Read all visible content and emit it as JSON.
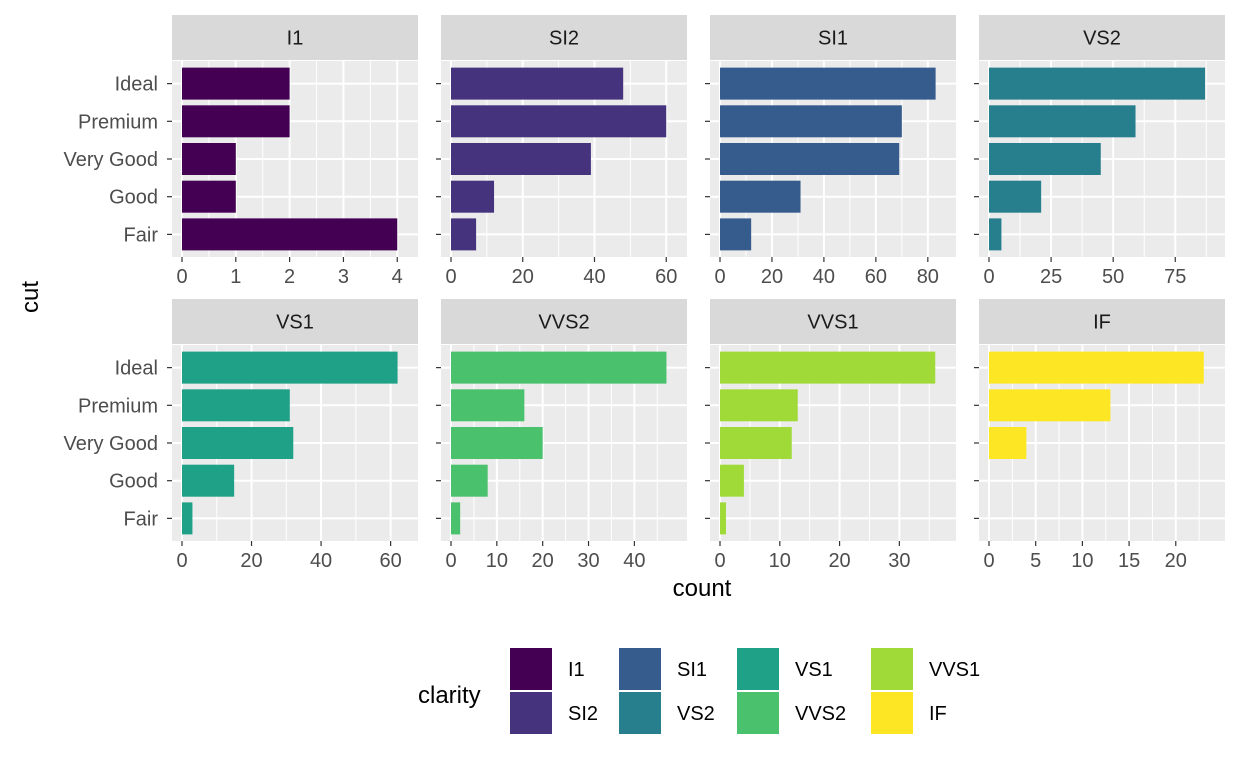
{
  "chart_data": {
    "type": "bar",
    "orientation": "horizontal",
    "faceted_by": "clarity",
    "facet_scales": "free_x",
    "xlabel": "count",
    "ylabel": "cut",
    "categories": [
      "Ideal",
      "Premium",
      "Very Good",
      "Good",
      "Fair"
    ],
    "panels": [
      {
        "name": "I1",
        "color": "#440154",
        "values": [
          2,
          2,
          1,
          1,
          4
        ],
        "xlim": [
          0,
          4.2
        ],
        "ticks": [
          0,
          1,
          2,
          3,
          4
        ]
      },
      {
        "name": "SI2",
        "color": "#46337E",
        "values": [
          48,
          60,
          39,
          12,
          7
        ],
        "xlim": [
          0,
          63
        ],
        "ticks": [
          0,
          20,
          40,
          60
        ]
      },
      {
        "name": "SI1",
        "color": "#365C8D",
        "values": [
          83,
          70,
          69,
          31,
          12
        ],
        "xlim": [
          0,
          87
        ],
        "ticks": [
          0,
          20,
          40,
          60,
          80
        ]
      },
      {
        "name": "VS2",
        "color": "#277F8E",
        "values": [
          87,
          59,
          45,
          21,
          5
        ],
        "xlim": [
          0,
          91
        ],
        "ticks": [
          0,
          25,
          50,
          75
        ]
      },
      {
        "name": "VS1",
        "color": "#1FA187",
        "values": [
          62,
          31,
          32,
          15,
          3
        ],
        "xlim": [
          0,
          65
        ],
        "ticks": [
          0,
          20,
          40,
          60
        ]
      },
      {
        "name": "VVS2",
        "color": "#4AC16D",
        "values": [
          47,
          16,
          20,
          8,
          2
        ],
        "xlim": [
          0,
          49.3
        ],
        "ticks": [
          0,
          10,
          20,
          30,
          40
        ]
      },
      {
        "name": "VVS1",
        "color": "#A0DA39",
        "values": [
          36,
          13,
          12,
          4,
          1
        ],
        "xlim": [
          0,
          37.8
        ],
        "ticks": [
          0,
          10,
          20,
          30
        ]
      },
      {
        "name": "IF",
        "color": "#FDE725",
        "values": [
          23,
          13,
          4,
          0,
          0
        ],
        "xlim": [
          0,
          24.2
        ],
        "ticks": [
          0,
          5,
          10,
          15,
          20
        ]
      }
    ],
    "legend": {
      "title": "clarity",
      "position": "bottom",
      "items": [
        {
          "label": "I1",
          "color": "#440154"
        },
        {
          "label": "SI2",
          "color": "#46337E"
        },
        {
          "label": "SI1",
          "color": "#365C8D"
        },
        {
          "label": "VS2",
          "color": "#277F8E"
        },
        {
          "label": "VS1",
          "color": "#1FA187"
        },
        {
          "label": "VVS2",
          "color": "#4AC16D"
        },
        {
          "label": "VVS1",
          "color": "#A0DA39"
        },
        {
          "label": "IF",
          "color": "#FDE725"
        }
      ]
    },
    "grid": true,
    "panel_background": "#EBEBEB",
    "strip_background": "#D9D9D9"
  }
}
